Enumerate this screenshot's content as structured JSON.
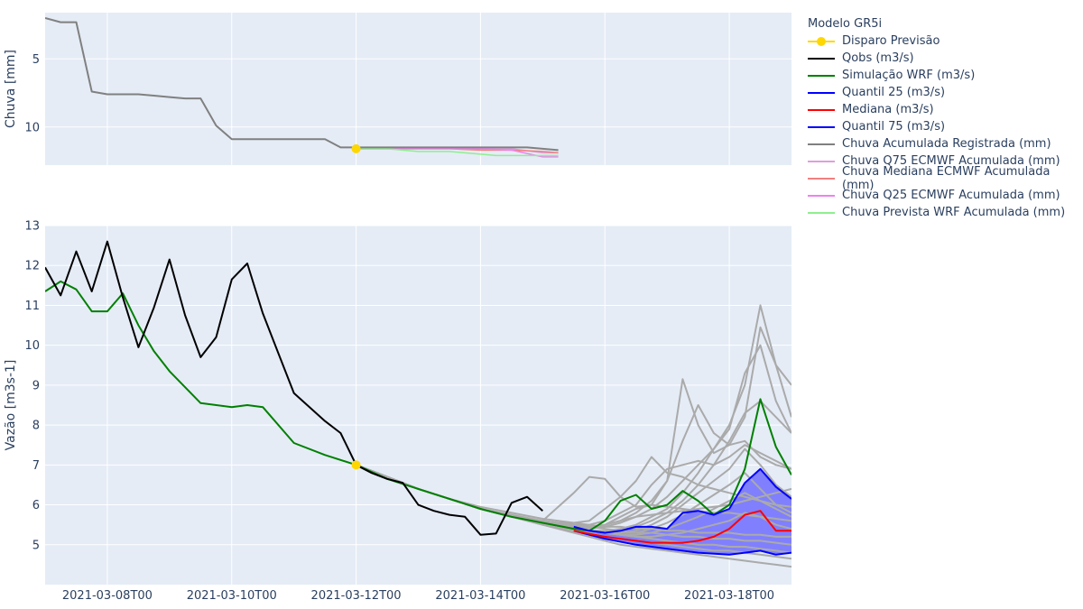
{
  "chart_data": {
    "type": "line",
    "x_ticks": [
      "2021-03-08T00",
      "2021-03-10T00",
      "2021-03-12T00",
      "2021-03-14T00",
      "2021-03-16T00",
      "2021-03-18T00"
    ],
    "x_range": [
      "2021-03-07T00",
      "2021-03-19T00"
    ],
    "forecast_trigger": {
      "time": "2021-03-12T00"
    },
    "legend": {
      "title": "Modelo GR5i",
      "position": "right",
      "items": [
        {
          "name": "Disparo Previsão",
          "color": "#FFD700",
          "marker": true
        },
        {
          "name": "Qobs (m3/s)",
          "color": "#000000"
        },
        {
          "name": "Simulação WRF (m3/s)",
          "color": "#008000"
        },
        {
          "name": "Quantil 25 (m3/s)",
          "color": "#0000FF"
        },
        {
          "name": "Mediana (m3/s)",
          "color": "#FF0000"
        },
        {
          "name": "Quantil 75 (m3/s)",
          "color": "#0000FF"
        },
        {
          "name": "Chuva Acumulada Registrada (mm)",
          "color": "#808080"
        },
        {
          "name": "Chuva Q75 ECMWF Acumulada (mm)",
          "color": "#DDA0DD"
        },
        {
          "name": "Chuva Mediana ECMWF Acumulada (mm)",
          "color": "#F08080"
        },
        {
          "name": "Chuva Q25 ECMWF Acumulada (mm)",
          "color": "#EE82EE"
        },
        {
          "name": "Chuva Prevista WRF Acumulada (mm)",
          "color": "#90EE90"
        }
      ]
    },
    "rain_panel": {
      "ylabel": "Chuva [mm]",
      "y_axis_reversed": true,
      "y_range": [
        1.6,
        12.8
      ],
      "y_ticks": [
        5,
        10
      ],
      "disparo_value": 11.6,
      "observed": {
        "t": [
          7.0,
          7.25,
          7.5,
          7.75,
          8.0,
          8.25,
          8.5,
          8.75,
          9.0,
          9.25,
          9.5,
          9.75,
          10.0,
          10.25,
          10.5,
          10.75,
          11.0,
          11.25,
          11.5,
          11.75,
          12.0,
          12.25,
          12.5,
          12.75,
          13.0,
          13.25,
          13.5,
          13.75,
          14.0,
          14.25,
          14.5,
          14.75,
          15.0,
          15.25
        ],
        "values": [
          2.0,
          2.3,
          2.3,
          7.4,
          7.6,
          7.6,
          7.6,
          7.7,
          7.8,
          7.9,
          7.9,
          9.9,
          10.9,
          10.9,
          10.9,
          10.9,
          10.9,
          10.9,
          10.9,
          11.5,
          11.5,
          11.5,
          11.5,
          11.5,
          11.5,
          11.5,
          11.5,
          11.5,
          11.5,
          11.5,
          11.5,
          11.5,
          11.6,
          11.7
        ]
      },
      "forecasts": [
        {
          "name": "Chuva Q75 ECMWF Acumulada (mm)",
          "t": [
            12.0,
            12.5,
            13.0,
            13.5,
            14.0,
            14.5,
            15.0,
            15.25
          ],
          "values": [
            11.6,
            11.6,
            11.6,
            11.6,
            11.6,
            11.6,
            11.9,
            11.9
          ]
        },
        {
          "name": "Chuva Mediana ECMWF Acumulada (mm)",
          "t": [
            12.0,
            12.5,
            13.0,
            13.5,
            14.0,
            14.5,
            15.0,
            15.25
          ],
          "values": [
            11.6,
            11.6,
            11.6,
            11.6,
            11.7,
            11.7,
            11.8,
            11.9
          ]
        },
        {
          "name": "Chuva Q25 ECMWF Acumulada (mm)",
          "t": [
            12.0,
            12.5,
            13.0,
            13.5,
            14.0,
            14.5,
            15.0,
            15.25
          ],
          "values": [
            11.6,
            11.6,
            11.6,
            11.6,
            11.6,
            11.7,
            12.2,
            12.2
          ]
        },
        {
          "name": "Chuva Prevista WRF Acumulada (mm)",
          "t": [
            12.0,
            12.5,
            13.0,
            13.5,
            14.0,
            14.25,
            14.5,
            14.75,
            15.0,
            15.25
          ],
          "values": [
            11.6,
            11.6,
            11.8,
            11.8,
            12.0,
            12.1,
            12.1,
            12.1,
            12.1,
            12.1
          ]
        }
      ]
    },
    "flow_panel": {
      "ylabel": "Vazão [m3s-1]",
      "y_range": [
        4.0,
        13.0
      ],
      "y_ticks": [
        5,
        6,
        7,
        8,
        9,
        10,
        11,
        12,
        13
      ],
      "disparo_value": 7.0,
      "qobs": {
        "t": [
          7.0,
          7.25,
          7.5,
          7.75,
          8.0,
          8.25,
          8.5,
          8.75,
          9.0,
          9.25,
          9.5,
          9.75,
          10.0,
          10.25,
          10.5,
          10.75,
          11.0,
          11.25,
          11.5,
          11.75,
          12.0,
          12.25,
          12.5,
          12.75,
          13.0,
          13.25,
          13.5,
          13.75,
          14.0,
          14.25,
          14.5,
          14.75,
          15.0
        ],
        "values": [
          11.95,
          11.25,
          12.35,
          11.35,
          12.6,
          11.2,
          9.95,
          10.95,
          12.15,
          10.75,
          9.7,
          10.2,
          11.65,
          12.05,
          10.8,
          9.8,
          8.8,
          8.45,
          8.1,
          7.8,
          7.0,
          6.8,
          6.65,
          6.55,
          6.0,
          5.85,
          5.75,
          5.7,
          5.25,
          5.28,
          6.05,
          6.2,
          5.85
        ]
      },
      "simulation_wrf": {
        "t": [
          7.0,
          7.25,
          7.5,
          7.75,
          8.0,
          8.25,
          8.5,
          8.75,
          9.0,
          9.5,
          10.0,
          10.25,
          10.5,
          11.0,
          11.5,
          12.0,
          12.5,
          13.0,
          13.5,
          14.0,
          14.5,
          15.0,
          15.5,
          15.75,
          16.0,
          16.25,
          16.5,
          16.75,
          17.0,
          17.25,
          17.5,
          17.75,
          18.0,
          18.25,
          18.5,
          18.75,
          19.0
        ],
        "values": [
          11.35,
          11.6,
          11.4,
          10.85,
          10.85,
          11.3,
          10.5,
          9.85,
          9.35,
          8.55,
          8.45,
          8.5,
          8.45,
          7.55,
          7.25,
          7.0,
          6.65,
          6.4,
          6.15,
          5.9,
          5.7,
          5.55,
          5.4,
          5.35,
          5.6,
          6.1,
          6.25,
          5.9,
          6.0,
          6.35,
          6.1,
          5.75,
          6.0,
          6.9,
          8.65,
          7.45,
          6.75
        ]
      },
      "quantil_25": {
        "t": [
          15.5,
          16.0,
          16.5,
          17.0,
          17.5,
          18.0,
          18.25,
          18.5,
          18.75,
          19.0
        ],
        "values": [
          5.35,
          5.15,
          5.0,
          4.9,
          4.8,
          4.75,
          4.8,
          4.85,
          4.75,
          4.8
        ]
      },
      "mediana": {
        "t": [
          15.5,
          16.0,
          16.5,
          16.75,
          17.0,
          17.25,
          17.5,
          17.75,
          18.0,
          18.25,
          18.5,
          18.75,
          19.0
        ],
        "values": [
          5.35,
          5.2,
          5.1,
          5.05,
          5.05,
          5.05,
          5.1,
          5.2,
          5.4,
          5.75,
          5.85,
          5.35,
          5.35
        ]
      },
      "quantil_75": {
        "t": [
          15.5,
          15.75,
          16.0,
          16.25,
          16.5,
          16.75,
          17.0,
          17.25,
          17.5,
          17.75,
          18.0,
          18.25,
          18.5,
          18.75,
          19.0
        ],
        "values": [
          5.45,
          5.35,
          5.3,
          5.35,
          5.45,
          5.45,
          5.4,
          5.8,
          5.85,
          5.75,
          5.9,
          6.55,
          6.9,
          6.45,
          6.15
        ]
      },
      "band_color": "#8080FF",
      "ensemble": {
        "color": "#AAAAAA",
        "t": [
          12.0,
          12.5,
          13.0,
          13.5,
          14.0,
          14.5,
          15.0,
          15.5,
          15.75,
          16.0,
          16.25,
          16.5,
          16.75,
          17.0,
          17.25,
          17.5,
          17.75,
          18.0,
          18.25,
          18.5,
          18.75,
          19.0
        ],
        "members": [
          [
            7.0,
            6.7,
            6.4,
            6.15,
            5.9,
            5.7,
            5.5,
            5.3,
            5.2,
            5.1,
            5.0,
            4.95,
            4.9,
            4.85,
            4.8,
            4.75,
            4.7,
            4.65,
            4.6,
            4.55,
            4.5,
            4.45
          ],
          [
            7.0,
            6.7,
            6.4,
            6.15,
            5.9,
            5.7,
            5.5,
            5.35,
            5.3,
            5.2,
            5.15,
            5.1,
            5.05,
            5.0,
            4.95,
            4.9,
            4.85,
            4.85,
            4.8,
            4.75,
            4.7,
            4.65
          ],
          [
            7.0,
            6.7,
            6.4,
            6.15,
            5.9,
            5.7,
            5.55,
            5.4,
            5.35,
            5.3,
            5.25,
            5.2,
            5.15,
            5.1,
            5.05,
            5.0,
            5.0,
            4.95,
            4.95,
            4.9,
            4.85,
            4.8
          ],
          [
            7.0,
            6.7,
            6.4,
            6.15,
            5.9,
            5.75,
            5.6,
            5.5,
            5.45,
            5.4,
            5.35,
            5.3,
            5.3,
            5.25,
            5.2,
            5.2,
            5.15,
            5.15,
            5.1,
            5.1,
            5.05,
            5.0
          ],
          [
            7.0,
            6.7,
            6.4,
            6.15,
            5.95,
            5.8,
            5.65,
            5.55,
            5.5,
            5.45,
            5.45,
            5.4,
            5.4,
            5.35,
            5.35,
            5.3,
            5.3,
            5.3,
            5.25,
            5.25,
            5.2,
            5.2
          ],
          [
            7.0,
            6.7,
            6.4,
            6.15,
            5.9,
            5.7,
            5.6,
            5.5,
            5.45,
            5.5,
            5.6,
            5.7,
            5.75,
            5.8,
            5.85,
            5.9,
            5.95,
            6.0,
            6.1,
            6.2,
            6.3,
            6.4
          ],
          [
            7.0,
            6.7,
            6.4,
            6.15,
            5.9,
            5.7,
            5.6,
            6.3,
            6.7,
            6.65,
            6.2,
            5.95,
            6.0,
            5.95,
            5.9,
            5.85,
            5.8,
            5.8,
            5.75,
            5.7,
            5.65,
            5.6
          ],
          [
            7.0,
            6.7,
            6.4,
            6.15,
            5.9,
            5.7,
            5.55,
            5.55,
            5.6,
            5.9,
            6.2,
            6.6,
            7.2,
            6.8,
            6.7,
            6.5,
            6.4,
            6.3,
            6.2,
            6.1,
            6.0,
            5.95
          ],
          [
            7.0,
            6.7,
            6.4,
            6.15,
            5.9,
            5.7,
            5.55,
            5.5,
            5.5,
            5.6,
            5.8,
            6.0,
            6.5,
            6.9,
            7.0,
            7.1,
            7.0,
            7.2,
            7.5,
            7.3,
            7.1,
            6.9
          ],
          [
            7.0,
            6.7,
            6.4,
            6.15,
            5.9,
            5.7,
            5.55,
            5.45,
            5.45,
            5.5,
            5.7,
            5.9,
            6.0,
            6.6,
            9.15,
            8.0,
            7.3,
            7.5,
            7.6,
            7.2,
            7.0,
            6.9
          ],
          [
            7.0,
            6.7,
            6.4,
            6.15,
            5.9,
            5.7,
            5.55,
            5.45,
            5.45,
            5.5,
            5.6,
            5.8,
            6.1,
            6.6,
            7.6,
            8.5,
            7.8,
            7.5,
            8.2,
            10.45,
            9.5,
            8.2
          ],
          [
            7.0,
            6.7,
            6.4,
            6.15,
            5.9,
            5.7,
            5.55,
            5.45,
            5.4,
            5.45,
            5.55,
            5.7,
            5.9,
            6.2,
            6.6,
            7.0,
            7.4,
            8.0,
            9.0,
            11.0,
            9.5,
            9.0
          ],
          [
            7.0,
            6.7,
            6.4,
            6.15,
            5.9,
            5.7,
            5.55,
            5.4,
            5.35,
            5.35,
            5.4,
            5.5,
            5.7,
            5.9,
            6.3,
            6.8,
            7.4,
            7.9,
            9.3,
            10.0,
            8.6,
            7.8
          ],
          [
            7.0,
            6.7,
            6.4,
            6.15,
            5.9,
            5.7,
            5.55,
            5.4,
            5.35,
            5.3,
            5.35,
            5.45,
            5.6,
            5.8,
            6.1,
            6.5,
            7.0,
            7.6,
            8.3,
            8.6,
            8.2,
            7.8
          ],
          [
            7.0,
            6.7,
            6.4,
            6.15,
            5.9,
            5.7,
            5.55,
            5.4,
            5.35,
            5.3,
            5.3,
            5.35,
            5.5,
            5.7,
            6.0,
            6.3,
            6.6,
            6.9,
            7.4,
            7.0,
            6.5,
            6.2
          ],
          [
            7.0,
            6.7,
            6.4,
            6.15,
            5.9,
            5.7,
            5.55,
            5.4,
            5.35,
            5.3,
            5.3,
            5.3,
            5.4,
            5.55,
            5.75,
            6.0,
            6.25,
            6.5,
            6.8,
            6.4,
            6.0,
            5.8
          ],
          [
            7.0,
            6.7,
            6.4,
            6.15,
            5.9,
            5.7,
            5.55,
            5.4,
            5.35,
            5.3,
            5.25,
            5.25,
            5.3,
            5.4,
            5.55,
            5.7,
            5.9,
            6.1,
            6.3,
            6.1,
            5.9,
            5.7
          ],
          [
            7.0,
            6.7,
            6.4,
            6.15,
            5.9,
            5.7,
            5.55,
            5.4,
            5.35,
            5.3,
            5.25,
            5.2,
            5.2,
            5.25,
            5.3,
            5.4,
            5.5,
            5.6,
            5.8,
            5.7,
            5.5,
            5.4
          ]
        ]
      }
    }
  }
}
